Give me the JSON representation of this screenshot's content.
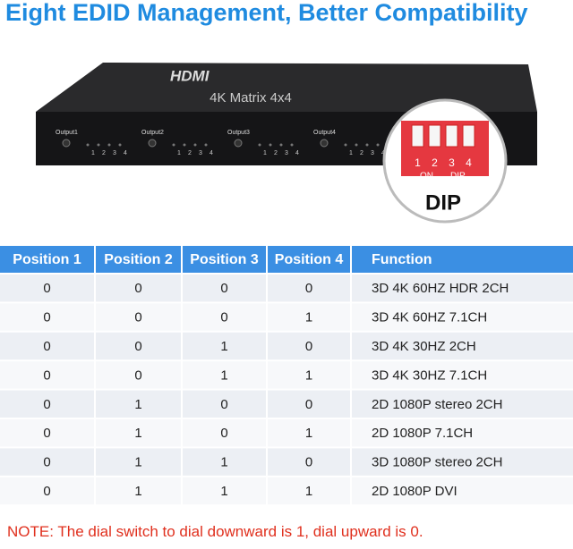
{
  "header": {
    "title": "Eight EDID Management, Better Compatibility"
  },
  "device": {
    "logo": "HDMI",
    "model": "4K Matrix 4x4",
    "outputs": [
      "Output1",
      "Output2",
      "Output3",
      "Output4"
    ],
    "port_numbers": [
      "1",
      "2",
      "3",
      "4"
    ],
    "dip": {
      "switch_numbers": [
        "1",
        "2",
        "3",
        "4"
      ],
      "on_label": "ON",
      "small_label": "DIP",
      "big_label": "DIP"
    }
  },
  "table": {
    "headers": [
      "Position 1",
      "Position 2",
      "Position 3",
      "Position 4",
      "Function"
    ],
    "rows": [
      [
        0,
        0,
        0,
        0,
        "3D 4K 60HZ HDR 2CH"
      ],
      [
        0,
        0,
        0,
        1,
        "3D 4K 60HZ 7.1CH"
      ],
      [
        0,
        0,
        1,
        0,
        "3D 4K 30HZ 2CH"
      ],
      [
        0,
        0,
        1,
        1,
        "3D 4K 30HZ 7.1CH"
      ],
      [
        0,
        1,
        0,
        0,
        "2D 1080P stereo 2CH"
      ],
      [
        0,
        1,
        0,
        1,
        "2D 1080P 7.1CH"
      ],
      [
        0,
        1,
        1,
        0,
        "3D 1080P stereo 2CH"
      ],
      [
        0,
        1,
        1,
        1,
        "2D 1080P DVI"
      ]
    ]
  },
  "note": {
    "label": "NOTE:",
    "text": "The dial switch to dial downward is 1, dial upward is 0."
  }
}
